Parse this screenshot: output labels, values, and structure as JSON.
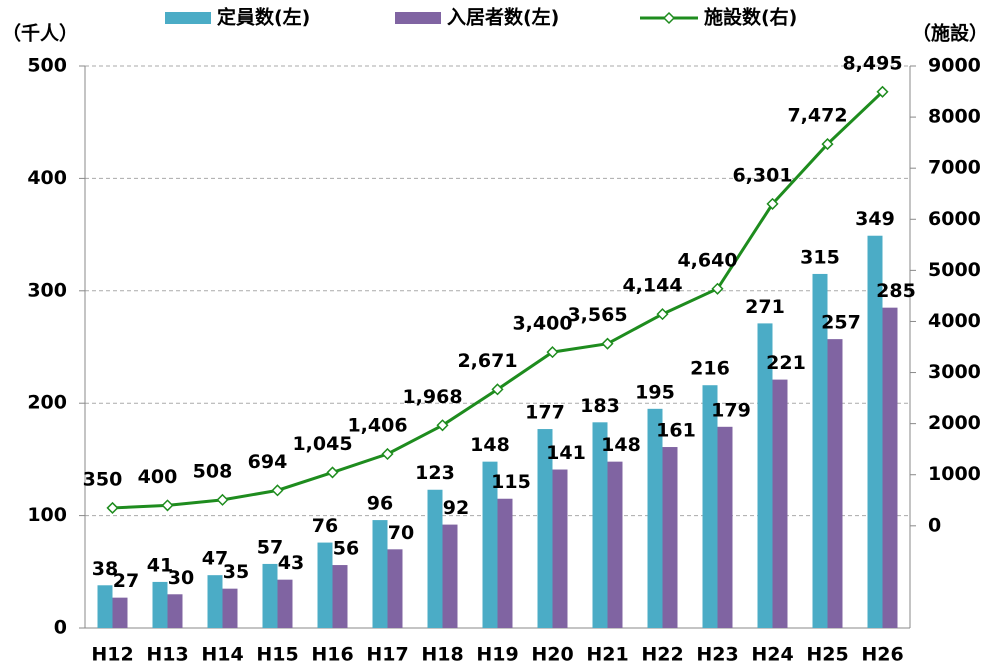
{
  "chart_data": {
    "type": "bar_line",
    "y_label": "（千人）",
    "y2_label": "（施設）",
    "categories": [
      "H12",
      "H13",
      "H14",
      "H15",
      "H16",
      "H17",
      "H18",
      "H19",
      "H20",
      "H21",
      "H22",
      "H23",
      "H24",
      "H25",
      "H26"
    ],
    "series": [
      {
        "name": "定員数(左)",
        "color": "#4bacc6",
        "type": "bar",
        "values": [
          38,
          41,
          47,
          57,
          76,
          96,
          123,
          148,
          177,
          183,
          195,
          216,
          271,
          315,
          349
        ]
      },
      {
        "name": "入居者数(左)",
        "color": "#8064a2",
        "type": "bar",
        "values": [
          27,
          30,
          35,
          43,
          56,
          70,
          92,
          115,
          141,
          148,
          161,
          179,
          221,
          257,
          285
        ]
      },
      {
        "name": "施設数(右)",
        "color": "#1e8c1e",
        "type": "line",
        "axis": "y2",
        "values": [
          350,
          400,
          508,
          694,
          1045,
          1406,
          1968,
          2671,
          3400,
          3565,
          4144,
          4640,
          6301,
          7472,
          8495
        ],
        "value_labels": [
          "350",
          "400",
          "508",
          "694",
          "1,045",
          "1,406",
          "1,968",
          "2,671",
          "3,400",
          "3,565",
          "4,144",
          "4,640",
          "6,301",
          "7,472",
          "8,495"
        ]
      }
    ],
    "ylim": [
      0,
      500
    ],
    "yticks": [
      0,
      100,
      200,
      300,
      400,
      500
    ],
    "y2lim": [
      -2000,
      9000
    ],
    "y2ticks": [
      0,
      1000,
      2000,
      3000,
      4000,
      5000,
      6000,
      7000,
      8000,
      9000
    ],
    "grid": true,
    "legend": "top"
  }
}
